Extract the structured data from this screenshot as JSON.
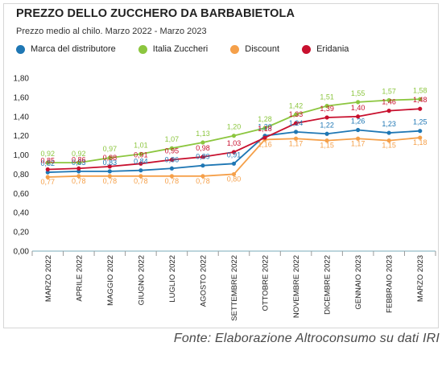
{
  "header": {
    "title": "PREZZO DELLO ZUCCHERO DA BARBABIETOLA",
    "subtitle": "Prezzo medio al chilo. Marzo 2022 - Marzo 2023"
  },
  "source": "Fonte: Elaborazione Altroconsumo su dati IRI",
  "chart_data": {
    "type": "line",
    "title": "PREZZO DELLO ZUCCHERO DA BARBABIETOLA",
    "subtitle": "Prezzo medio al chilo. Marzo 2022 - Marzo 2023",
    "xlabel": "",
    "ylabel": "",
    "ylim": [
      0,
      1.8
    ],
    "yticks": [
      "0,00",
      "0,20",
      "0,40",
      "0,60",
      "0,80",
      "1,00",
      "1,20",
      "1,40",
      "1,60",
      "1,80"
    ],
    "grid": false,
    "legend": "top",
    "categories": [
      "MARZO 2022",
      "APRILE 2022",
      "MAGGIO 2022",
      "GIUGNO 2022",
      "LUGLIO 2022",
      "AGOSTO 2022",
      "SETTEMBRE 2022",
      "OTTOBRE 2022",
      "NOVEMBRE 2022",
      "DICEMBRE 2022",
      "GENNAIO 2023",
      "FEBBRAIO 2023",
      "MARZO 2023"
    ],
    "series": [
      {
        "name": "Marca del distributore",
        "color": "#1f77b4",
        "values": [
          0.82,
          0.83,
          0.83,
          0.84,
          0.86,
          0.89,
          0.91,
          1.2,
          1.24,
          1.22,
          1.26,
          1.23,
          1.25
        ],
        "labels": [
          "0,82",
          "0,83",
          "0,83",
          "0,84",
          "0,86",
          "0,89",
          "0,91",
          "1,20",
          "1,24",
          "1,22",
          "1,26",
          "1,23",
          "1,25"
        ]
      },
      {
        "name": "Italia Zuccheri",
        "color": "#8cc63f",
        "values": [
          0.92,
          0.92,
          0.97,
          1.01,
          1.07,
          1.13,
          1.2,
          1.28,
          1.42,
          1.51,
          1.55,
          1.57,
          1.58
        ],
        "labels": [
          "0,92",
          "0,92",
          "0,97",
          "1,01",
          "1,07",
          "1,13",
          "1,20",
          "1,28",
          "1,42",
          "1,51",
          "1,55",
          "1,57",
          "1,58"
        ]
      },
      {
        "name": "Discount",
        "color": "#f5a04a",
        "values": [
          0.77,
          0.78,
          0.78,
          0.78,
          0.78,
          0.78,
          0.8,
          1.16,
          1.17,
          1.15,
          1.17,
          1.15,
          1.18
        ],
        "labels": [
          "0,77",
          "0,78",
          "0,78",
          "0,78",
          "0,78",
          "0,78",
          "0,80",
          "1,16",
          "1,17",
          "1,15",
          "1,17",
          "1,15",
          "1,18"
        ]
      },
      {
        "name": "Eridania",
        "color": "#c8102e",
        "values": [
          0.85,
          0.86,
          0.88,
          0.91,
          0.95,
          0.98,
          1.03,
          1.18,
          1.33,
          1.39,
          1.4,
          1.46,
          1.48
        ],
        "labels": [
          "0,85",
          "0,86",
          "0,88",
          "0,91",
          "0,95",
          "0,98",
          "1,03",
          "1,18",
          "1,33",
          "1,39",
          "1,40",
          "1,46",
          "1,48"
        ]
      }
    ]
  }
}
